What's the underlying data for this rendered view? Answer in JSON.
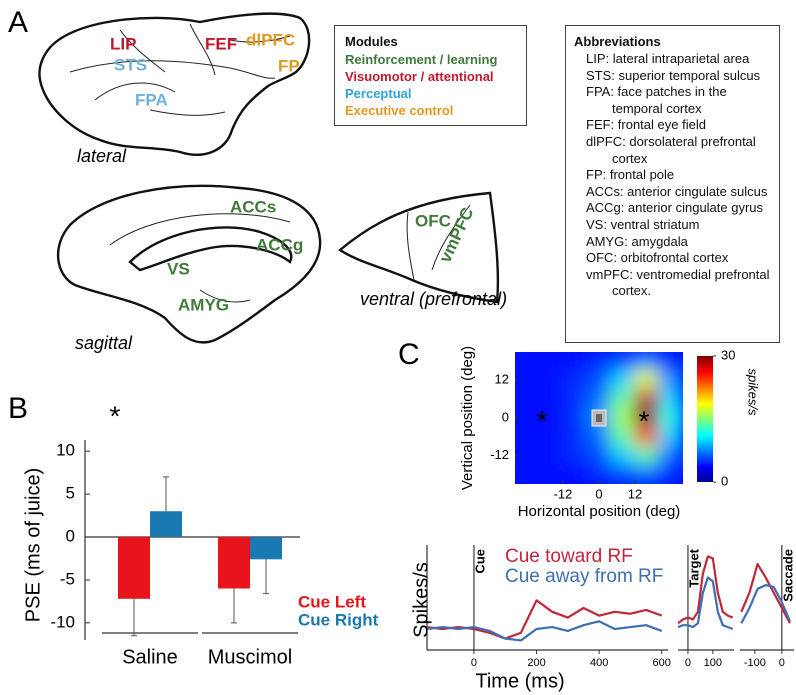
{
  "panel_labels": {
    "a": "A",
    "b": "B",
    "c": "C"
  },
  "brain_views": [
    {
      "caption": "lateral",
      "labels": [
        {
          "text": "LIP",
          "color": "#c0182c"
        },
        {
          "text": "FEF",
          "color": "#c0182c"
        },
        {
          "text": "dlPFC",
          "color": "#e0991f"
        },
        {
          "text": "FP",
          "color": "#e0991f"
        },
        {
          "text": "STS",
          "color": "#6fb0da"
        },
        {
          "text": "FPA",
          "color": "#6fb0da"
        }
      ]
    },
    {
      "caption": "sagittal",
      "labels": [
        {
          "text": "ACCs",
          "color": "#3f7a3a"
        },
        {
          "text": "ACCg",
          "color": "#3f7a3a"
        },
        {
          "text": "VS",
          "color": "#3f7a3a"
        },
        {
          "text": "AMYG",
          "color": "#3f7a3a"
        }
      ]
    },
    {
      "caption": "ventral (prefrontal)",
      "labels": [
        {
          "text": "OFC",
          "color": "#3f7a3a"
        },
        {
          "text": "vmPFC",
          "color": "#3f7a3a"
        }
      ]
    }
  ],
  "modules": {
    "title": "Modules",
    "items": [
      {
        "name": "Reinforcement / learning",
        "color": "#3f7a3a"
      },
      {
        "name": "Visuomotor / attentional",
        "color": "#c0182c"
      },
      {
        "name": "Perceptual",
        "color": "#2aa6d6"
      },
      {
        "name": "Executive control",
        "color": "#e0991f"
      }
    ]
  },
  "abbreviations": {
    "title": "Abbreviations",
    "items": [
      "LIP: lateral intraparietal area",
      "STS: superior temporal sulcus",
      "FPA: face patches in the temporal cortex",
      "FEF: frontal eye field",
      "dlPFC: dorsolateral prefrontal cortex",
      "FP: frontal pole",
      "ACCs: anterior cingulate sulcus",
      "ACCg: anterior cingulate gyrus",
      "VS: ventral striatum",
      "AMYG: amygdala",
      "OFC: orbitofrontal cortex",
      "vmPFC: ventromedial prefrontal cortex."
    ]
  },
  "chart_data": [
    {
      "type": "bar",
      "ylabel": "PSE (ms of juice)",
      "categories": [
        "Saline",
        "Muscimol"
      ],
      "series": [
        {
          "name": "Cue Left",
          "color": "#e8141b",
          "values": [
            -7.2,
            -6.0
          ],
          "errors": [
            4.3,
            4.0
          ]
        },
        {
          "name": "Cue Right",
          "color": "#1b79b2",
          "values": [
            3.0,
            -2.6
          ],
          "errors": [
            4.0,
            4.0
          ]
        }
      ],
      "ylim": [
        -12,
        11.3
      ],
      "yticks": [
        10,
        5,
        0,
        -5,
        -10
      ],
      "annotations": [
        {
          "text": "*",
          "category": 0
        }
      ]
    },
    {
      "type": "heatmap",
      "xlabel": "Horizontal position (deg)",
      "ylabel": "Vertical position (deg)",
      "x": [
        -24,
        -16,
        -8,
        0,
        8,
        16,
        24
      ],
      "y": [
        18,
        12,
        6,
        0,
        -6,
        -12,
        -18
      ],
      "z": [
        [
          4,
          4,
          4,
          5,
          6,
          8,
          5
        ],
        [
          4,
          4,
          5,
          6,
          10,
          18,
          8
        ],
        [
          4,
          4,
          5,
          7,
          14,
          28,
          10
        ],
        [
          4,
          4,
          5,
          8,
          16,
          30,
          12
        ],
        [
          4,
          4,
          5,
          7,
          14,
          24,
          10
        ],
        [
          4,
          4,
          5,
          6,
          10,
          14,
          7
        ],
        [
          4,
          4,
          4,
          5,
          6,
          7,
          5
        ]
      ],
      "xlim": [
        -28,
        28
      ],
      "ylim": [
        -21,
        21
      ],
      "xticks": [
        -12,
        0,
        12
      ],
      "yticks": [
        12,
        0,
        -12
      ],
      "colorbar": {
        "lim": [
          0,
          30
        ],
        "ticks": [
          0,
          30
        ],
        "label": "spikes/s"
      },
      "markers": [
        {
          "x": -19,
          "y": 0,
          "label": "*"
        },
        {
          "x": 15,
          "y": 0,
          "label": "*"
        }
      ]
    },
    {
      "type": "line",
      "ylabel": "Spikes/s",
      "xlabel": "Time (ms)",
      "event": "Cue",
      "x": [
        -150,
        -100,
        -50,
        0,
        50,
        100,
        150,
        200,
        250,
        300,
        350,
        400,
        450,
        500,
        550,
        600
      ],
      "series": [
        {
          "name": "Cue toward RF",
          "color": "#c0283a",
          "values": [
            12,
            11,
            12,
            11,
            9,
            6,
            9,
            26,
            20,
            17,
            22,
            18,
            20,
            19,
            21,
            18
          ]
        },
        {
          "name": "Cue away from RF",
          "color": "#3d6fb2",
          "values": [
            11,
            12,
            11,
            12,
            10,
            6,
            5,
            11,
            12,
            10,
            13,
            15,
            11,
            12,
            13,
            10
          ]
        }
      ],
      "xlim": [
        -150,
        620
      ],
      "ylim": [
        0,
        55
      ],
      "xticks": [
        0,
        200,
        400,
        600
      ]
    },
    {
      "type": "line",
      "event": "Target",
      "x": [
        -40,
        -20,
        0,
        20,
        40,
        60,
        80,
        100,
        120,
        140,
        160,
        180
      ],
      "series": [
        {
          "color": "#c0283a",
          "values": [
            14,
            16,
            17,
            16,
            20,
            40,
            49,
            48,
            30,
            20,
            18,
            17
          ]
        },
        {
          "color": "#3d6fb2",
          "values": [
            12,
            13,
            13,
            12,
            14,
            30,
            38,
            36,
            20,
            13,
            12,
            11
          ]
        }
      ],
      "xlim": [
        -40,
        185
      ],
      "ylim": [
        0,
        55
      ],
      "xticks": [
        0,
        100
      ]
    },
    {
      "type": "line",
      "event": "Saccade",
      "x": [
        -150,
        -120,
        -90,
        -60,
        -30,
        0,
        30
      ],
      "series": [
        {
          "color": "#c0283a",
          "values": [
            20,
            30,
            45,
            38,
            30,
            22,
            14
          ]
        },
        {
          "color": "#3d6fb2",
          "values": [
            14,
            22,
            32,
            34,
            33,
            25,
            15
          ]
        }
      ],
      "xlim": [
        -155,
        45
      ],
      "ylim": [
        0,
        55
      ],
      "xticks": [
        -100,
        0
      ]
    }
  ]
}
